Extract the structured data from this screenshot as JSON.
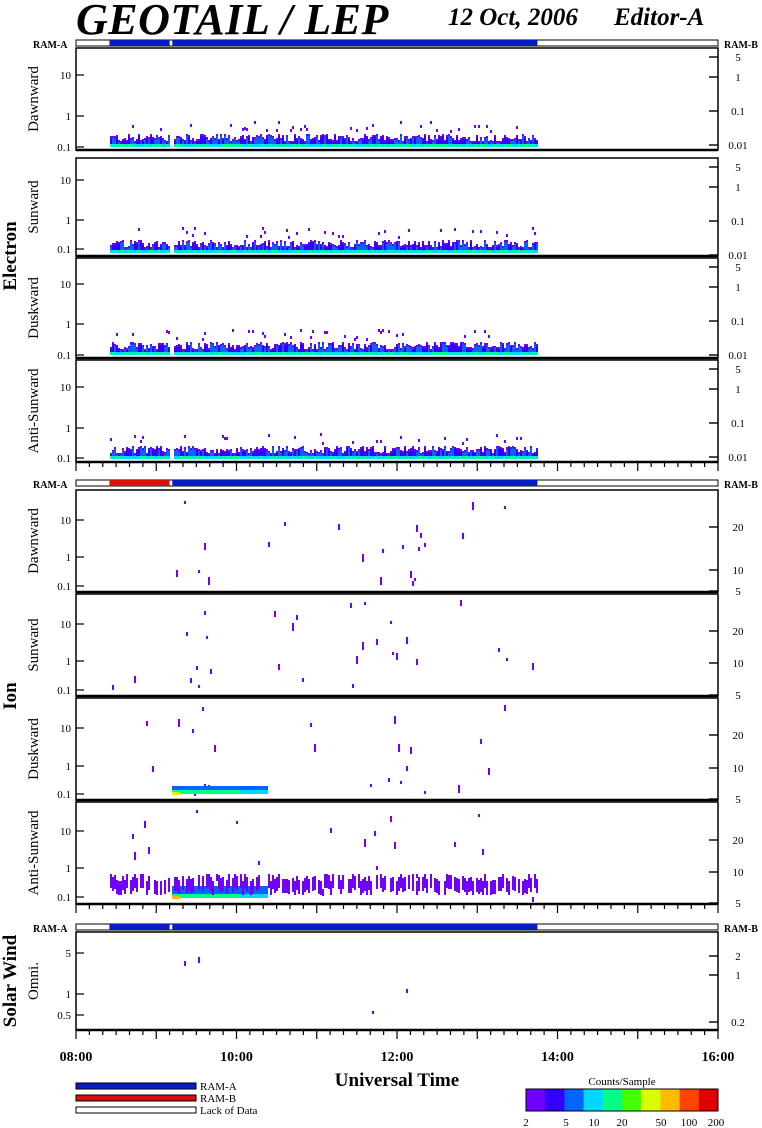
{
  "header": {
    "title": "GEOTAIL / LEP",
    "date": "12 Oct, 2006",
    "editor": "Editor-A"
  },
  "colors": {
    "ram_a": "#0a1cc8",
    "ram_b": "#d81010",
    "lack_of_data": "#ffffff",
    "axis": "#000000"
  },
  "status_bars": {
    "left_label": "RAM-A",
    "right_label": "RAM-B",
    "electron": [
      {
        "start": "08:25",
        "end": "09:10",
        "mode": "RAM-A"
      },
      {
        "start": "09:12",
        "end": "13:45",
        "mode": "RAM-A"
      }
    ],
    "ion": [
      {
        "start": "08:25",
        "end": "09:10",
        "mode": "RAM-B"
      },
      {
        "start": "09:12",
        "end": "13:45",
        "mode": "RAM-A"
      }
    ],
    "solar_wind": [
      {
        "start": "08:25",
        "end": "09:10",
        "mode": "RAM-A"
      },
      {
        "start": "09:12",
        "end": "13:45",
        "mode": "RAM-A"
      }
    ]
  },
  "chart_data": {
    "type": "heatmap",
    "x_axis": {
      "title": "Universal Time",
      "range": [
        "08:00",
        "16:00"
      ],
      "tick_labels": [
        "08:00",
        "10:00",
        "12:00",
        "14:00",
        "16:00"
      ]
    },
    "groups": [
      {
        "name": "Electron",
        "panels": [
          {
            "label": "Dawnward",
            "left_ticks": [
              "10",
              "1",
              "0.1"
            ],
            "right_ticks": [
              "5",
              "1",
              "0.1",
              "0.01"
            ]
          },
          {
            "label": "Sunward",
            "left_ticks": [
              "10",
              "1",
              "0.1"
            ],
            "right_ticks": [
              "5",
              "1",
              "0.1",
              "0.01"
            ]
          },
          {
            "label": "Duskward",
            "left_ticks": [
              "10",
              "1",
              "0.1"
            ],
            "right_ticks": [
              "5",
              "1",
              "0.1",
              "0.01"
            ]
          },
          {
            "label": "Anti-Sunward",
            "left_ticks": [
              "10",
              "1",
              "0.1"
            ],
            "right_ticks": [
              "5",
              "1",
              "0.1",
              "0.01"
            ]
          }
        ]
      },
      {
        "name": "Ion",
        "panels": [
          {
            "label": "Dawnward",
            "left_ticks": [
              "10",
              "1",
              "0.1"
            ],
            "right_ticks": [
              "20",
              "10",
              "5"
            ]
          },
          {
            "label": "Sunward",
            "left_ticks": [
              "10",
              "1",
              "0.1"
            ],
            "right_ticks": [
              "20",
              "10",
              "5"
            ]
          },
          {
            "label": "Duskward",
            "left_ticks": [
              "10",
              "1",
              "0.1"
            ],
            "right_ticks": [
              "20",
              "10",
              "5"
            ]
          },
          {
            "label": "Anti-Sunward",
            "left_ticks": [
              "10",
              "1",
              "0.1"
            ],
            "right_ticks": [
              "20",
              "10",
              "5"
            ]
          }
        ]
      },
      {
        "name": "Solar Wind",
        "panels": [
          {
            "label": "Omni.",
            "left_ticks": [
              "5",
              "1",
              "0.5"
            ],
            "right_ticks": [
              "2",
              "1",
              "0.2"
            ]
          }
        ]
      }
    ],
    "data_gaps": [
      [
        "08:00",
        "08:25"
      ],
      [
        "09:10",
        "09:12"
      ],
      [
        "13:45",
        "16:00"
      ]
    ],
    "colorbar": {
      "title": "Counts/Sample",
      "tick_labels": [
        "2",
        "5",
        "10",
        "20",
        "50",
        "100",
        "200"
      ],
      "colors": [
        "#7000ff",
        "#3300ff",
        "#0066ff",
        "#00d8ff",
        "#00ff88",
        "#44ff00",
        "#d8ff00",
        "#ffbb00",
        "#ff4400",
        "#e00000"
      ]
    }
  },
  "legend": {
    "items": [
      {
        "label": "RAM-A",
        "color": "#0a1cc8"
      },
      {
        "label": "RAM-B",
        "color": "#d81010"
      },
      {
        "label": "Lack of Data",
        "color": "#ffffff"
      }
    ]
  }
}
